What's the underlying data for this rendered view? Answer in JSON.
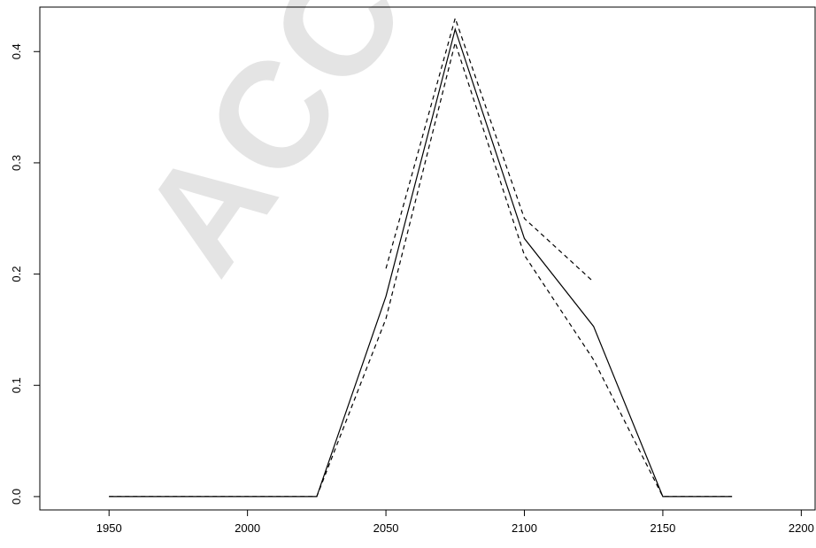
{
  "watermark": "ACCEPTED MANUSCRIPT",
  "chart_data": {
    "type": "line",
    "title": "",
    "xlabel": "",
    "ylabel": "",
    "xlim": [
      1925,
      2205
    ],
    "ylim": [
      -0.012,
      0.44
    ],
    "xticks": [
      1950,
      2000,
      2050,
      2100,
      2150,
      2200
    ],
    "yticks": [
      0.0,
      0.1,
      0.2,
      0.3,
      0.4
    ],
    "xtick_labels": [
      "1950",
      "2000",
      "2050",
      "2100",
      "2150",
      "2200"
    ],
    "ytick_labels": [
      "0.0",
      "0.1",
      "0.2",
      "0.3",
      "0.4"
    ],
    "grid": false,
    "series": [
      {
        "style": "solid",
        "x": [
          1950,
          1975,
          2000,
          2025,
          2050,
          2075,
          2100,
          2125,
          2150,
          2175
        ],
        "y": [
          0,
          0,
          0,
          0,
          0.18,
          0.42,
          0.232,
          0.153,
          0,
          0
        ]
      },
      {
        "style": "dashed",
        "x": [
          2050,
          2075,
          2100,
          2125
        ],
        "y": [
          0.205,
          0.43,
          0.25,
          0.193
        ]
      },
      {
        "style": "dashed",
        "x": [
          1950,
          1975,
          2000,
          2025,
          2050,
          2075,
          2100,
          2125,
          2150,
          2175
        ],
        "y": [
          0,
          0,
          0,
          0,
          0.16,
          0.408,
          0.217,
          0.123,
          0,
          0
        ]
      }
    ],
    "colors": {
      "line": "#000000",
      "axis": "#000000"
    }
  }
}
